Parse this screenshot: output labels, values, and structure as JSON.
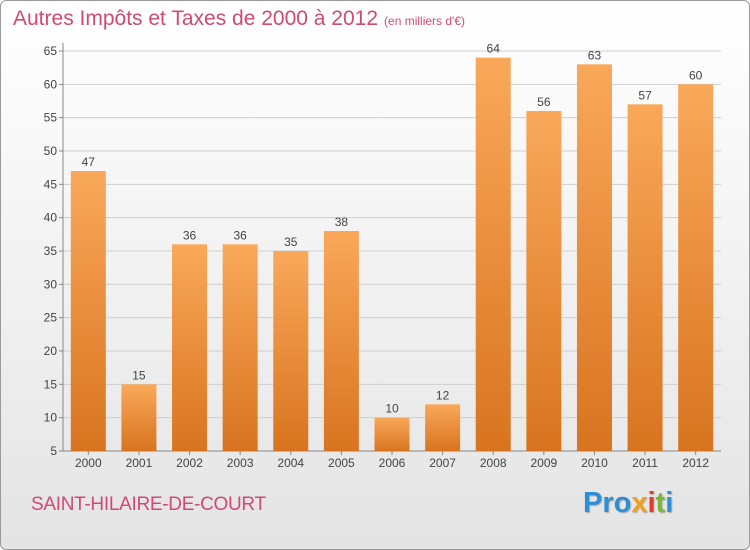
{
  "title": "Autres Impôts et Taxes de 2000 à 2012",
  "subtitle": "(en milliers d'€)",
  "city": "SAINT-HILAIRE-DE-COURT",
  "logo": {
    "p1": "Pro",
    "p2": "x",
    "p3": "i",
    "p4": "t",
    "p5": "i"
  },
  "colors": {
    "bar_light": "#f9a85a",
    "bar_dark": "#d87420",
    "title": "#d04a72"
  },
  "chart_data": {
    "type": "bar",
    "categories": [
      "2000",
      "2001",
      "2002",
      "2003",
      "2004",
      "2005",
      "2006",
      "2007",
      "2008",
      "2009",
      "2010",
      "2011",
      "2012"
    ],
    "values": [
      47,
      15,
      36,
      36,
      35,
      38,
      10,
      12,
      64,
      56,
      63,
      57,
      60
    ],
    "ylim": [
      5,
      65
    ],
    "yticks": [
      5,
      10,
      15,
      20,
      25,
      30,
      35,
      40,
      45,
      50,
      55,
      60,
      65
    ],
    "grid": true,
    "xlabel": "",
    "ylabel": ""
  }
}
